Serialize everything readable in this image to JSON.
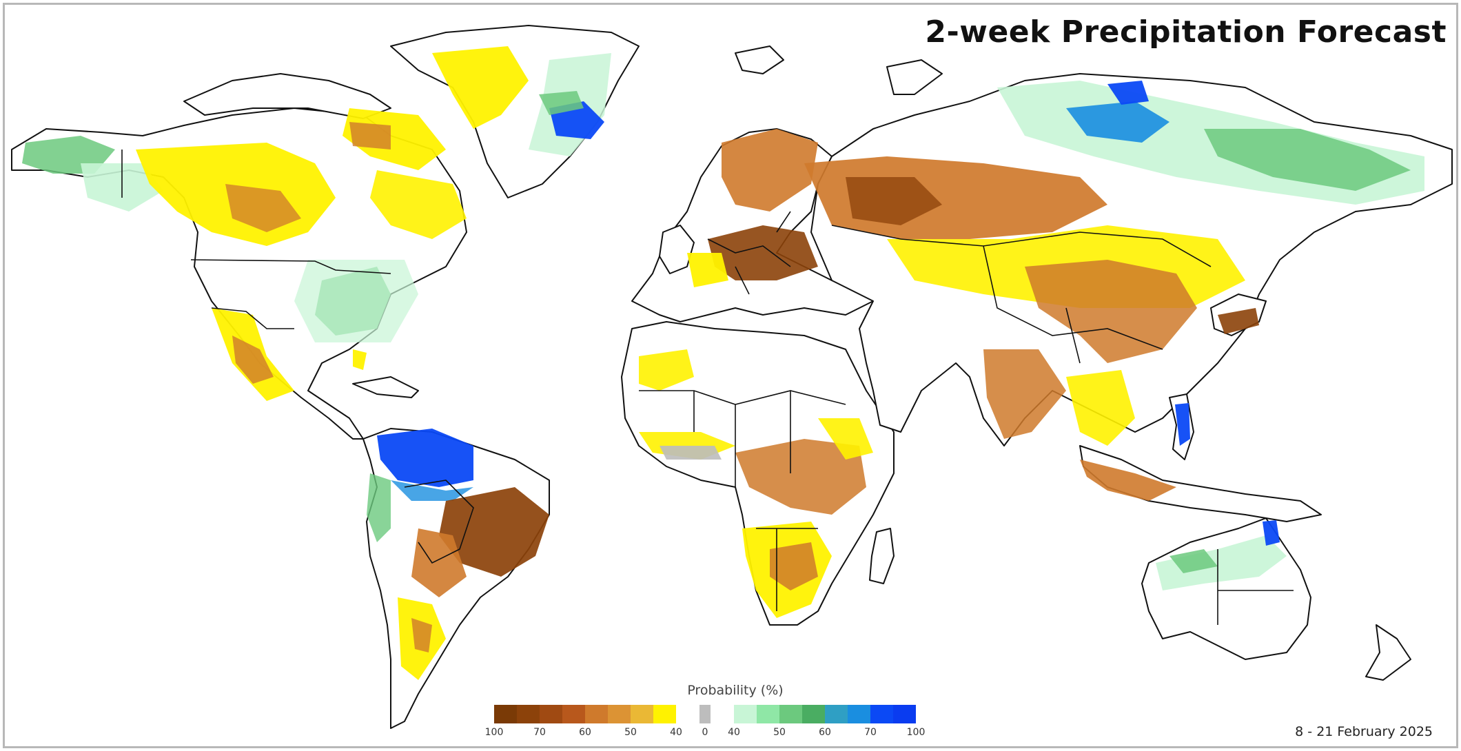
{
  "title": "2-week Precipitation Forecast",
  "date_range": "8 - 21 February 2025",
  "legend": {
    "title": "Probability (%)",
    "dry_colors": [
      "#7a3a06",
      "#8c420a",
      "#a04a12",
      "#b8581c",
      "#cf7a2c",
      "#dc9334",
      "#eab835",
      "#fff200"
    ],
    "neutral_color": "#bdbdbd",
    "wet_colors": [
      "#c8f5d6",
      "#8fe7a6",
      "#6cc97e",
      "#4aad62",
      "#2f9fc4",
      "#1a8ee0",
      "#0b49f5",
      "#0a3cf0"
    ],
    "dry_tick_labels": [
      "100",
      "70",
      "60",
      "50",
      "40"
    ],
    "neutral_tick_label": "0",
    "wet_tick_labels": [
      "40",
      "50",
      "60",
      "70",
      "100"
    ]
  },
  "map": {
    "land_color": "#ffffff",
    "border_color": "#111111",
    "forecast_colors": {
      "dry_strong": "#8c420a",
      "dry_moderate": "#cf7a2c",
      "dry_light": "#fff200",
      "neutral": "#bdbdbd",
      "wet_light": "#c8f5d6",
      "wet_moderate": "#6cc97e",
      "wet_strong": "#1a8ee0",
      "wet_very_strong": "#0b49f5"
    }
  }
}
